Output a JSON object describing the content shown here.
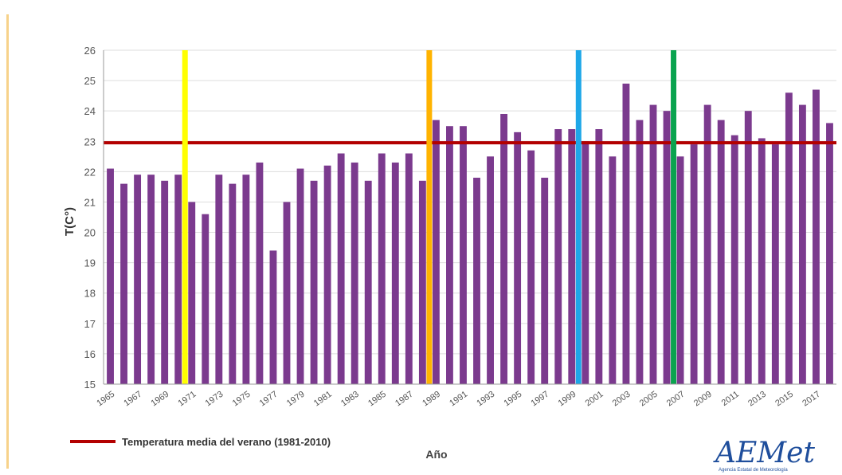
{
  "chart_data": {
    "type": "bar",
    "title": "",
    "xlabel": "Año",
    "ylabel": "T(C°)",
    "ylim": [
      15,
      26
    ],
    "yticks": [
      15,
      16,
      17,
      18,
      19,
      20,
      21,
      22,
      23,
      24,
      25,
      26
    ],
    "grid": "horizontal",
    "bar_color": "#7b3a8e",
    "categories": [
      "1965",
      "1966",
      "1967",
      "1968",
      "1969",
      "1970",
      "1971",
      "1972",
      "1973",
      "1974",
      "1975",
      "1976",
      "1977",
      "1978",
      "1979",
      "1980",
      "1981",
      "1982",
      "1983",
      "1984",
      "1985",
      "1986",
      "1987",
      "1988",
      "1989",
      "1990",
      "1991",
      "1992",
      "1993",
      "1994",
      "1995",
      "1996",
      "1997",
      "1998",
      "1999",
      "2000",
      "2001",
      "2002",
      "2003",
      "2004",
      "2005",
      "2006",
      "2007",
      "2008",
      "2009",
      "2010",
      "2011",
      "2012",
      "2013",
      "2014",
      "2015",
      "2016",
      "2017",
      "2018"
    ],
    "x_tick_labels": [
      "1965",
      "1967",
      "1969",
      "1971",
      "1973",
      "1975",
      "1977",
      "1979",
      "1981",
      "1983",
      "1985",
      "1987",
      "1989",
      "1991",
      "1993",
      "1995",
      "1997",
      "1999",
      "2001",
      "2003",
      "2005",
      "2007",
      "2009",
      "2011",
      "2013",
      "2015",
      "2017"
    ],
    "values": [
      22.1,
      21.6,
      21.9,
      21.9,
      21.7,
      21.9,
      21.0,
      20.6,
      21.9,
      21.6,
      21.9,
      22.3,
      19.4,
      21.0,
      22.1,
      21.7,
      22.2,
      22.6,
      22.3,
      21.7,
      22.6,
      22.3,
      22.6,
      21.7,
      23.7,
      23.5,
      23.5,
      21.8,
      22.5,
      23.9,
      23.3,
      22.7,
      21.8,
      23.4,
      23.4,
      23.0,
      23.4,
      22.5,
      24.9,
      23.7,
      24.2,
      24.0,
      22.5,
      22.9,
      24.2,
      23.7,
      23.2,
      24.0,
      23.1,
      22.9,
      24.6,
      24.2,
      24.7,
      23.6
    ],
    "reference_line": {
      "label": "Temperatura media del verano (1981-2010)",
      "value": 22.95,
      "color": "#b30000"
    },
    "vertical_markers": [
      {
        "year": "1970",
        "color": "#ffff00"
      },
      {
        "year": "1988",
        "color": "#ffb300"
      },
      {
        "year": "1999",
        "color": "#1ea7e8"
      },
      {
        "year": "2006",
        "color": "#0aa34f"
      }
    ],
    "legend_position": "bottom-left"
  },
  "logo": {
    "text": "AEMet",
    "subtitle": "Agencia Estatal de Meteorología"
  },
  "colors": {
    "grid": "#dddddd",
    "axis": "#999999",
    "left_rule": "#f7d28a"
  }
}
